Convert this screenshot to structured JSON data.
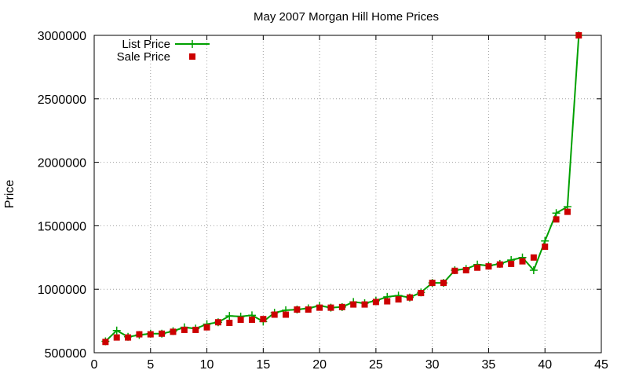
{
  "chart_data": {
    "type": "line",
    "title": "May 2007 Morgan Hill Home Prices",
    "xlabel": "",
    "ylabel": "Price",
    "xlim": [
      0,
      45
    ],
    "ylim": [
      500000,
      3000000
    ],
    "xticks": [
      0,
      5,
      10,
      15,
      20,
      25,
      30,
      35,
      40,
      45
    ],
    "yticks": [
      500000,
      1000000,
      1500000,
      2000000,
      2500000,
      3000000
    ],
    "grid": true,
    "legend_position": "top-left",
    "series": [
      {
        "name": "List Price",
        "style": "line-with-plus-markers",
        "color": "#00a000",
        "x": [
          1,
          2,
          3,
          4,
          5,
          6,
          7,
          8,
          9,
          10,
          11,
          12,
          13,
          14,
          15,
          16,
          17,
          18,
          19,
          20,
          21,
          22,
          23,
          24,
          25,
          26,
          27,
          28,
          29,
          30,
          31,
          32,
          33,
          34,
          35,
          36,
          37,
          38,
          39,
          40,
          41,
          42,
          43
        ],
        "y": [
          590000,
          675000,
          625000,
          640000,
          650000,
          650000,
          670000,
          700000,
          690000,
          725000,
          740000,
          790000,
          785000,
          795000,
          745000,
          815000,
          835000,
          840000,
          850000,
          870000,
          855000,
          860000,
          900000,
          890000,
          910000,
          940000,
          950000,
          935000,
          975000,
          1050000,
          1050000,
          1150000,
          1160000,
          1195000,
          1185000,
          1200000,
          1230000,
          1250000,
          1150000,
          1380000,
          1600000,
          1650000,
          3000000
        ]
      },
      {
        "name": "Sale Price",
        "style": "square-markers",
        "color": "#cc0000",
        "x": [
          1,
          2,
          3,
          4,
          5,
          6,
          7,
          8,
          9,
          10,
          11,
          12,
          13,
          14,
          15,
          16,
          17,
          18,
          19,
          20,
          21,
          22,
          23,
          24,
          25,
          26,
          27,
          28,
          29,
          30,
          31,
          32,
          33,
          34,
          35,
          36,
          37,
          38,
          39,
          40,
          41,
          42,
          43
        ],
        "y": [
          585000,
          620000,
          620000,
          645000,
          645000,
          650000,
          665000,
          680000,
          680000,
          700000,
          740000,
          735000,
          760000,
          760000,
          765000,
          800000,
          800000,
          840000,
          840000,
          855000,
          855000,
          860000,
          880000,
          880000,
          900000,
          905000,
          920000,
          935000,
          970000,
          1050000,
          1050000,
          1145000,
          1150000,
          1170000,
          1180000,
          1195000,
          1200000,
          1220000,
          1250000,
          1335000,
          1550000,
          1610000,
          3000000
        ]
      }
    ]
  }
}
